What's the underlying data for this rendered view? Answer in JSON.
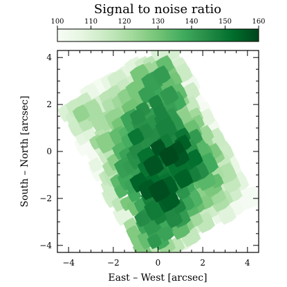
{
  "chart_data": {
    "type": "heatmap",
    "title": "Signal to noise ratio",
    "xlabel": "East – West [arcsec]",
    "ylabel": "South – North [arcsec]",
    "xlim": [
      -4.5,
      4.5
    ],
    "ylim": [
      -4.3,
      4.3
    ],
    "x_ticks": [
      -4,
      -2,
      0,
      2,
      4
    ],
    "y_ticks": [
      -4,
      -2,
      0,
      2,
      4
    ],
    "x_tick_labels": [
      "−4",
      "−2",
      "0",
      "2",
      "4"
    ],
    "y_tick_labels": [
      "−4",
      "−2",
      "0",
      "2",
      "4"
    ],
    "colorbar": {
      "label": "Signal to noise ratio",
      "min": 100,
      "max": 160,
      "ticks": [
        100,
        110,
        120,
        130,
        140,
        150,
        160
      ],
      "tick_labels": [
        "100",
        "110",
        "120",
        "130",
        "140",
        "150",
        "160"
      ],
      "colormap": "Greens",
      "colors": [
        "#f7fcf5",
        "#e5f5e0",
        "#c7e9c0",
        "#a1d99b",
        "#74c476",
        "#41ab5d",
        "#238b45",
        "#006d2c",
        "#00441b"
      ]
    },
    "field": {
      "center": [
        0.0,
        0.0
      ],
      "rotation_deg": 30,
      "half_width": 2.6,
      "half_height": 3.75,
      "tile_size": 0.55
    },
    "features": [
      {
        "x": 0.8,
        "y": -0.6,
        "snr": 160
      },
      {
        "x": 0.9,
        "y": 0.2,
        "snr": 158
      },
      {
        "x": 0.1,
        "y": -1.9,
        "snr": 160
      },
      {
        "x": 0.0,
        "y": 0.8,
        "snr": 155
      },
      {
        "x": -0.3,
        "y": -0.5,
        "snr": 154
      },
      {
        "x": -0.9,
        "y": 0.6,
        "snr": 150
      },
      {
        "x": -0.8,
        "y": -1.3,
        "snr": 152
      },
      {
        "x": 1.5,
        "y": -0.8,
        "snr": 150
      },
      {
        "x": -0.5,
        "y": 1.8,
        "snr": 145
      },
      {
        "x": 0.4,
        "y": 2.5,
        "snr": 140
      },
      {
        "x": -0.6,
        "y": -3.5,
        "snr": 146
      },
      {
        "x": 2.2,
        "y": -1.5,
        "snr": 132
      },
      {
        "x": 1.8,
        "y": 2.1,
        "snr": 108
      },
      {
        "x": 2.8,
        "y": 0.5,
        "snr": 112
      },
      {
        "x": -2.2,
        "y": 1.5,
        "snr": 112
      },
      {
        "x": -2.5,
        "y": -0.6,
        "snr": 115
      },
      {
        "x": 3.3,
        "y": -1.8,
        "snr": 104
      },
      {
        "x": -1.6,
        "y": -2.6,
        "snr": 125
      },
      {
        "x": -1.8,
        "y": 2.5,
        "snr": 110
      }
    ],
    "background_snr": 125
  }
}
